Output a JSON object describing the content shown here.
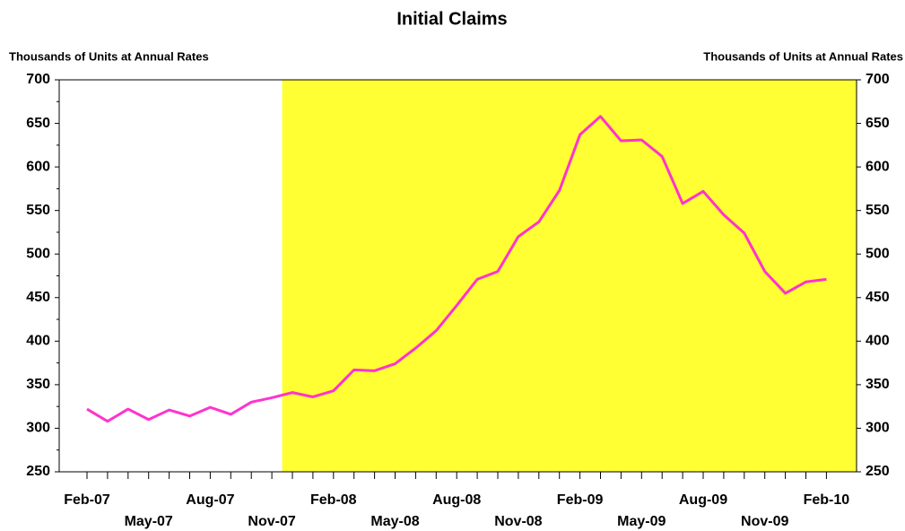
{
  "chart_data": {
    "type": "line",
    "title": "Initial Claims",
    "y_label": "Thousands of Units at Annual Rates",
    "y2_label": "Thousands of Units at Annual Rates",
    "categories": [
      "Feb-07",
      null,
      null,
      "May-07",
      null,
      null,
      "Aug-07",
      null,
      null,
      "Nov-07",
      null,
      null,
      "Feb-08",
      null,
      null,
      "May-08",
      null,
      null,
      "Aug-08",
      null,
      null,
      "Nov-08",
      null,
      null,
      "Feb-09",
      null,
      null,
      "May-09",
      null,
      null,
      "Aug-09",
      null,
      null,
      "Nov-09",
      null,
      null,
      "Feb-10"
    ],
    "series": [
      {
        "color": "#ff33cc",
        "values": [
          322,
          308,
          322,
          310,
          321,
          314,
          324,
          316,
          330,
          335,
          341,
          336,
          343,
          367,
          366,
          374,
          392,
          412,
          441,
          471,
          480,
          520,
          537,
          573,
          637,
          658,
          630,
          631,
          612,
          558,
          572,
          545,
          524,
          480,
          455,
          468,
          471
        ]
      }
    ],
    "ylim": [
      250,
      700
    ],
    "yticks": [
      250,
      300,
      350,
      400,
      450,
      500,
      550,
      600,
      650,
      700
    ],
    "y2lim": [
      250,
      700
    ],
    "y2ticks": [
      250,
      300,
      350,
      400,
      450,
      500,
      550,
      600,
      650,
      700
    ],
    "highlight_color": "#ffff33"
  }
}
